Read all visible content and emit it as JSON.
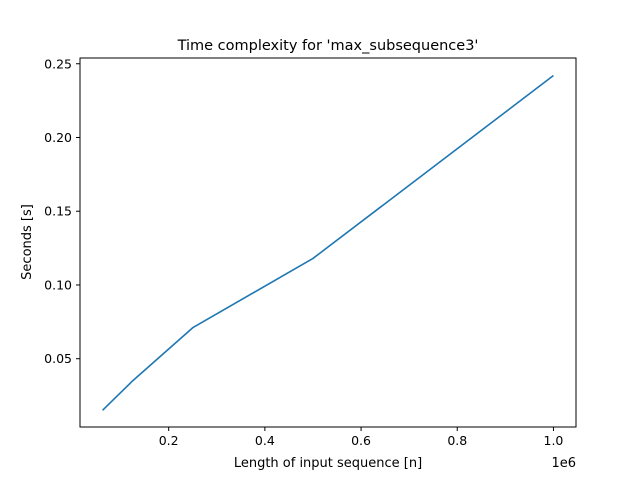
{
  "chart_data": {
    "type": "line",
    "title": "Time complexity for 'max_subsequence3'",
    "xlabel": "Length of input sequence [n]",
    "ylabel": "Seconds [s]",
    "x_offset_text": "1e6",
    "x_scale": 1000000,
    "xlim": [
      15625,
      1046875
    ],
    "ylim": [
      0.0037,
      0.2539
    ],
    "x_ticks": [
      200000,
      400000,
      600000,
      800000,
      1000000
    ],
    "x_tick_labels": [
      "0.2",
      "0.4",
      "0.6",
      "0.8",
      "1.0"
    ],
    "y_ticks": [
      0.05,
      0.1,
      0.15,
      0.2,
      0.25
    ],
    "y_tick_labels": [
      "0.05",
      "0.10",
      "0.15",
      "0.20",
      "0.25"
    ],
    "grid": false,
    "series": [
      {
        "color": "#1f77b4",
        "x": [
          62500,
          125000,
          250000,
          500000,
          1000000
        ],
        "y": [
          0.015,
          0.035,
          0.071,
          0.118,
          0.242
        ]
      }
    ]
  }
}
